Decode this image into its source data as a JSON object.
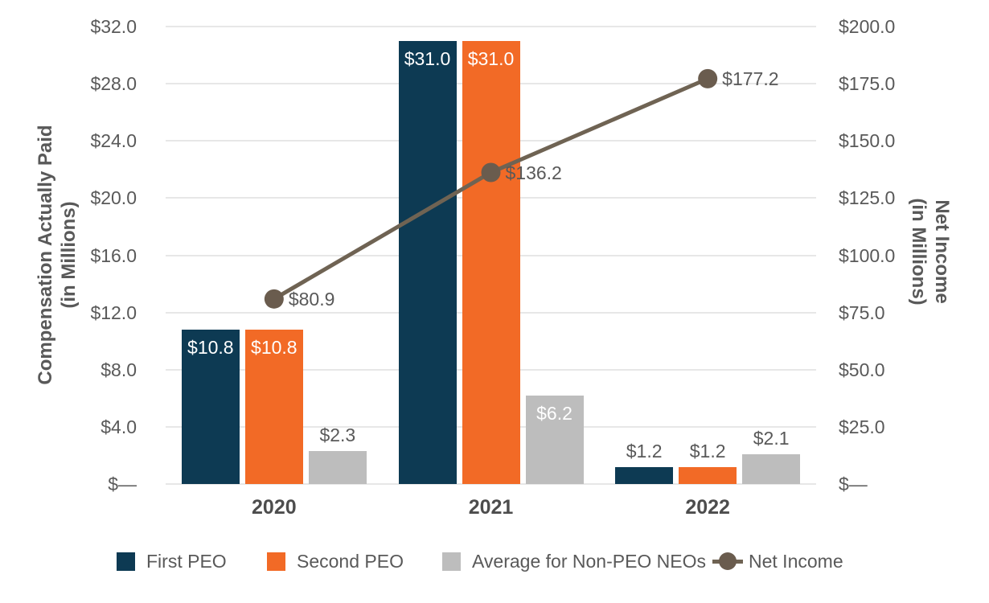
{
  "chart_data": {
    "type": "bar",
    "subtype": "grouped-bars-with-line-overlay",
    "categories": [
      "2020",
      "2021",
      "2022"
    ],
    "series": [
      {
        "name": "First PEO",
        "type": "bar",
        "axis": "left",
        "color": "#0D3A53",
        "values": [
          10.8,
          31.0,
          1.2
        ],
        "data_labels": [
          "$10.8",
          "$31.0",
          "$1.2"
        ]
      },
      {
        "name": "Second PEO",
        "type": "bar",
        "axis": "left",
        "color": "#F26A26",
        "values": [
          10.8,
          31.0,
          1.2
        ],
        "data_labels": [
          "$10.8",
          "$31.0",
          "$1.2"
        ]
      },
      {
        "name": "Average for Non-PEO NEOs",
        "type": "bar",
        "axis": "left",
        "color": "#BDBDBD",
        "values": [
          2.3,
          6.2,
          2.1
        ],
        "data_labels": [
          "$2.3",
          "$6.2",
          "$2.1"
        ]
      },
      {
        "name": "Net Income",
        "type": "line",
        "axis": "right",
        "color": "#6F6353",
        "marker_color": "#6A5C4E",
        "values": [
          80.9,
          136.2,
          177.2
        ],
        "data_labels": [
          "$80.9",
          "$136.2",
          "$177.2"
        ]
      }
    ],
    "left_axis": {
      "title_line1": "Compensation Actually Paid",
      "title_line2": "(in Millions)",
      "min": 0,
      "max": 32,
      "tick_step": 4,
      "tick_labels": [
        "$32.0",
        "$28.0",
        "$24.0",
        "$20.0",
        "$16.0",
        "$12.0",
        "$8.0",
        "$4.0",
        "$—"
      ]
    },
    "right_axis": {
      "title_line1": "Net Income",
      "title_line2": "(in Millions)",
      "min": 0,
      "max": 200,
      "tick_step": 25,
      "tick_labels": [
        "$200.0",
        "$175.0",
        "$150.0",
        "$125.0",
        "$100.0",
        "$75.0",
        "$50.0",
        "$25.0",
        "$—"
      ]
    },
    "grid": true,
    "legend_position": "bottom",
    "styles": {
      "grid_color": "#E7E7E7",
      "tick_text_color": "#595959",
      "category_text_color": "#4D4D4D",
      "inside_label_color": "#FFFFFF",
      "outside_label_color": "#595959",
      "axis_title_color": "#595959",
      "legend_text_color": "#595959",
      "background": "#FFFFFF"
    }
  }
}
